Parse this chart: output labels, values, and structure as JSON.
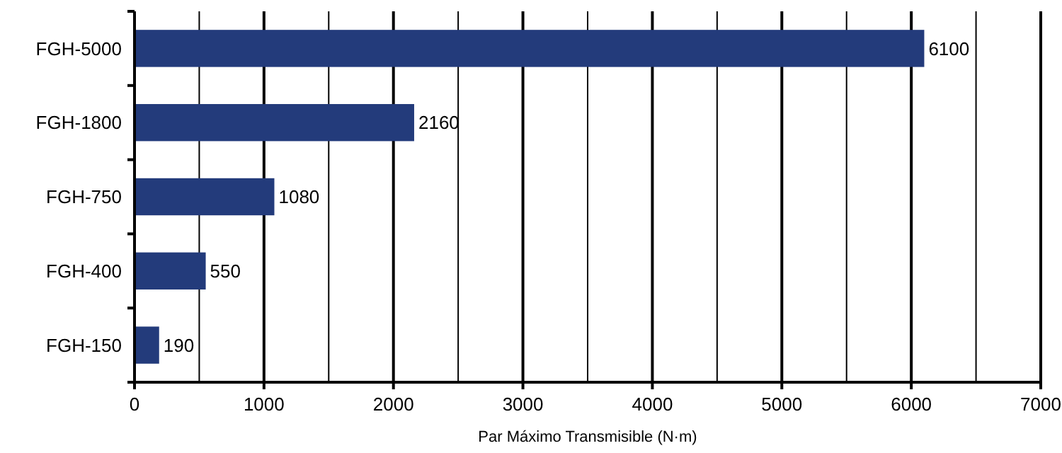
{
  "chart_data": {
    "type": "bar",
    "orientation": "horizontal",
    "xlabel": "Par Máximo Transmisible (N·m)",
    "categories": [
      "FGH-5000",
      "FGH-1800",
      "FGH-750",
      "FGH-400",
      "FGH-150"
    ],
    "values": [
      6100,
      2160,
      1080,
      550,
      190
    ],
    "color": "#233b7b",
    "data_labels": true,
    "grid": "x",
    "xlim": [
      0,
      7000
    ],
    "xticks": [
      0,
      {
        "value": 500,
        "label": null
      },
      1000,
      {
        "value": 1500,
        "label": null
      },
      2000,
      {
        "value": 2500,
        "label": null
      },
      3000,
      {
        "value": 3500,
        "label": null
      },
      4000,
      {
        "value": 4500,
        "label": null
      },
      5000,
      {
        "value": 5500,
        "label": null
      },
      6000,
      {
        "value": 6500,
        "label": null
      },
      7000
    ]
  }
}
